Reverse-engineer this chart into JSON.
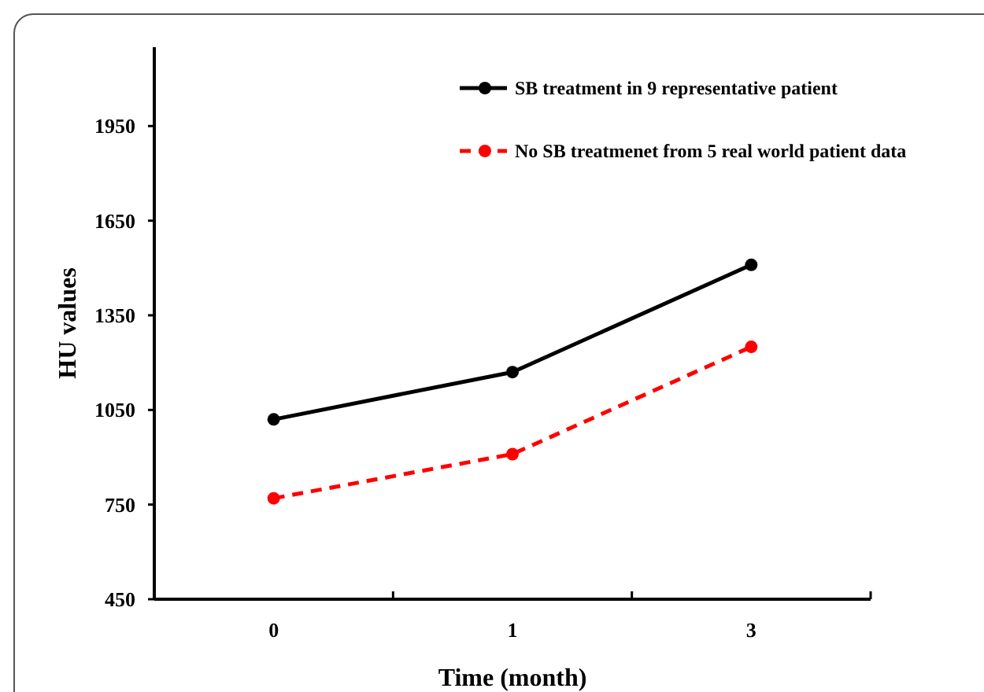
{
  "chart_data": {
    "type": "line",
    "xlabel": "Time (month)",
    "ylabel": "HU values",
    "categories": [
      "0",
      "1",
      "3"
    ],
    "series": [
      {
        "name": "SB treatment in 9 representative patient",
        "color": "#000000",
        "values": [
          1020,
          1170,
          1510
        ],
        "line_style": "solid"
      },
      {
        "name": "No SB treatmenet from 5 real world patient data",
        "color": "#ff0000",
        "values": [
          770,
          910,
          1250
        ],
        "line_style": "dashed"
      }
    ],
    "ylim": [
      450,
      2200
    ],
    "yticks": [
      450,
      750,
      1050,
      1350,
      1650,
      1950
    ],
    "marker": "circle",
    "legend": "top right",
    "grid": false
  }
}
